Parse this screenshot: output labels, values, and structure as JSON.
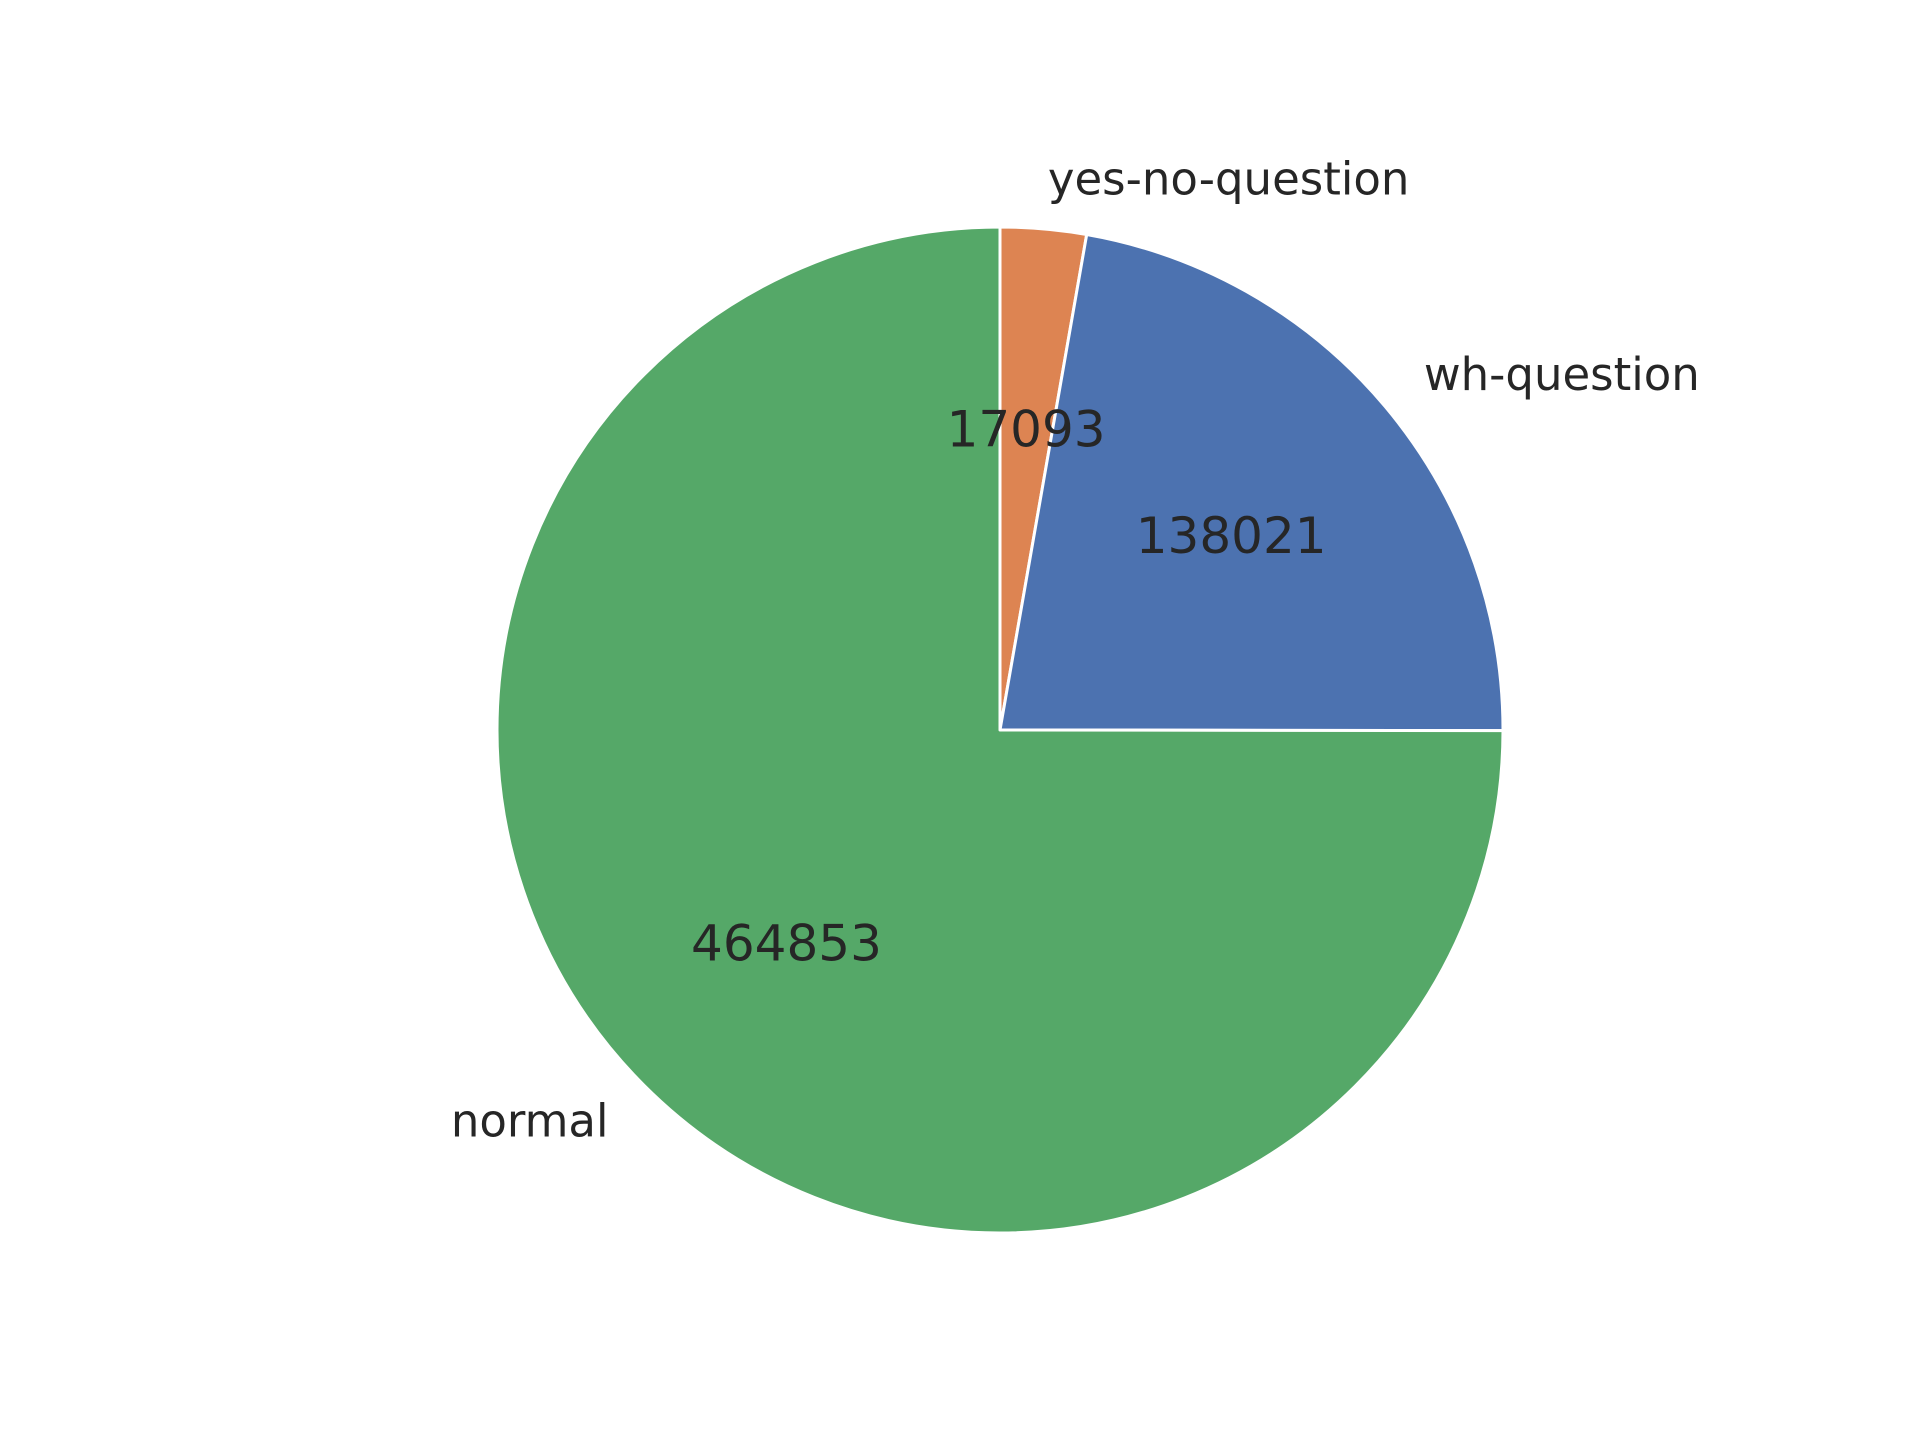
{
  "chart_data": {
    "type": "pie",
    "title": "",
    "categories": [
      "yes-no-question",
      "wh-question",
      "normal"
    ],
    "values": [
      17093,
      138021,
      464853
    ],
    "value_labels": [
      "17093",
      "138021",
      "464853"
    ],
    "colors": [
      "#dd8452",
      "#4c72b0",
      "#55a868"
    ],
    "start_angle_deg": 90,
    "direction": "clockwise",
    "edge_color": "#ffffff",
    "legend": "none"
  }
}
